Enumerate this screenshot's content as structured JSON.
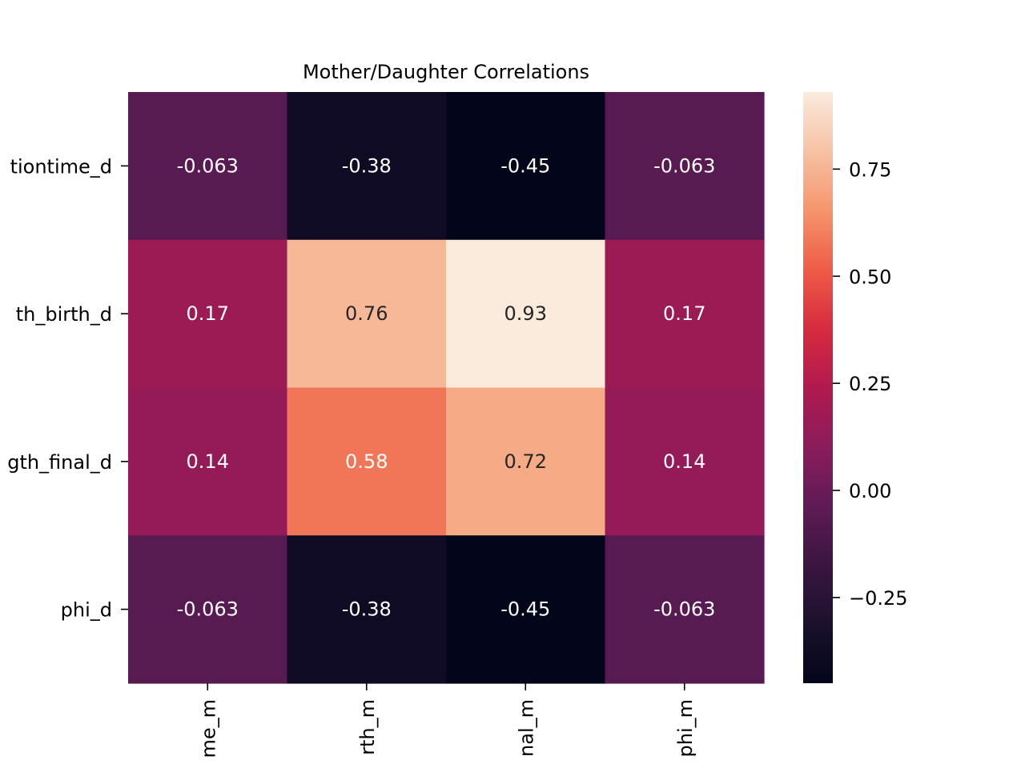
{
  "chart_data": {
    "type": "heatmap",
    "title": "Mother/Daughter Correlations",
    "row_labels": [
      "tiontime_d",
      "th_birth_d",
      "gth_final_d",
      "phi_d"
    ],
    "col_labels": [
      "me_m",
      "rth_m",
      "nal_m",
      "phi_m"
    ],
    "values": [
      [
        -0.063,
        -0.38,
        -0.45,
        -0.063
      ],
      [
        0.17,
        0.76,
        0.93,
        0.17
      ],
      [
        0.14,
        0.58,
        0.72,
        0.14
      ],
      [
        -0.063,
        -0.38,
        -0.45,
        -0.063
      ]
    ],
    "annotations": [
      [
        "-0.063",
        "-0.38",
        "-0.45",
        "-0.063"
      ],
      [
        "0.17",
        "0.76",
        "0.93",
        "0.17"
      ],
      [
        "0.14",
        "0.58",
        "0.72",
        "0.14"
      ],
      [
        "-0.063",
        "-0.38",
        "-0.45",
        "-0.063"
      ]
    ],
    "colormap": "rocket",
    "colorbar": {
      "range": [
        -0.45,
        0.93
      ],
      "ticks": [
        -0.25,
        0.0,
        0.25,
        0.5,
        0.75
      ],
      "tick_labels": [
        "−0.25",
        "0.00",
        "0.25",
        "0.50",
        "0.75"
      ]
    }
  }
}
